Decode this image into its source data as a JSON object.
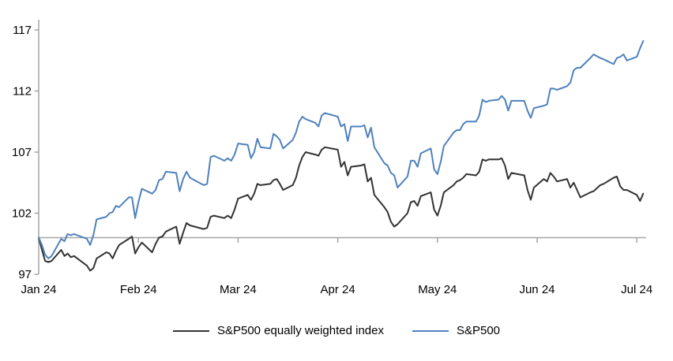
{
  "chart_data": {
    "type": "line",
    "title": "",
    "x_tick_labels": [
      "Jan 24",
      "Feb 24",
      "Mar 24",
      "Apr 24",
      "May 24",
      "Jun 24",
      "Jul 24"
    ],
    "y_ticks": [
      117,
      112,
      107,
      102,
      97
    ],
    "y_axis_range": [
      97,
      117.8
    ],
    "baseline_value": 100,
    "grid": false,
    "legend_position": "bottom",
    "dates": [
      "12-29",
      "01-02",
      "01-03",
      "01-04",
      "01-05",
      "01-08",
      "01-09",
      "01-10",
      "01-11",
      "01-12",
      "01-16",
      "01-17",
      "01-18",
      "01-19",
      "01-22",
      "01-23",
      "01-24",
      "01-25",
      "01-26",
      "01-29",
      "01-30",
      "01-31",
      "02-01",
      "02-02",
      "02-05",
      "02-06",
      "02-07",
      "02-08",
      "02-09",
      "02-12",
      "02-13",
      "02-14",
      "02-15",
      "02-16",
      "02-20",
      "02-21",
      "02-22",
      "02-23",
      "02-26",
      "02-27",
      "02-28",
      "02-29",
      "03-01",
      "03-04",
      "03-05",
      "03-06",
      "03-07",
      "03-08",
      "03-11",
      "03-12",
      "03-13",
      "03-14",
      "03-15",
      "03-18",
      "03-19",
      "03-20",
      "03-21",
      "03-22",
      "03-25",
      "03-26",
      "03-27",
      "03-28",
      "04-01",
      "04-02",
      "04-03",
      "04-04",
      "04-05",
      "04-08",
      "04-09",
      "04-10",
      "04-11",
      "04-12",
      "04-15",
      "04-16",
      "04-17",
      "04-18",
      "04-19",
      "04-22",
      "04-23",
      "04-24",
      "04-25",
      "04-26",
      "04-29",
      "04-30",
      "05-01",
      "05-02",
      "05-03",
      "05-06",
      "05-07",
      "05-08",
      "05-09",
      "05-10",
      "05-13",
      "05-14",
      "05-15",
      "05-16",
      "05-17",
      "05-20",
      "05-21",
      "05-22",
      "05-23",
      "05-24",
      "05-28",
      "05-29",
      "05-30",
      "05-31",
      "06-03",
      "06-04",
      "06-05",
      "06-06",
      "06-07",
      "06-10",
      "06-11",
      "06-12",
      "06-13",
      "06-14",
      "06-17",
      "06-18",
      "06-20",
      "06-21",
      "06-24",
      "06-25",
      "06-26",
      "06-27",
      "06-28",
      "07-01",
      "07-02",
      "07-03"
    ],
    "series": [
      {
        "id": "sp500-ew",
        "name": "S&P500 equally weighted index",
        "color": "#333333",
        "values": [
          100.0,
          99.0,
          98.1,
          98.0,
          98.1,
          99.0,
          98.5,
          98.7,
          98.4,
          98.5,
          97.7,
          97.3,
          97.5,
          98.3,
          98.8,
          98.7,
          98.3,
          98.9,
          99.4,
          99.9,
          100.1,
          98.7,
          99.2,
          99.6,
          98.8,
          99.5,
          100.0,
          100.1,
          100.5,
          100.9,
          99.5,
          100.4,
          101.2,
          101.0,
          100.7,
          100.8,
          101.7,
          101.8,
          101.6,
          101.8,
          101.6,
          102.3,
          103.2,
          103.5,
          103.1,
          103.6,
          104.4,
          104.3,
          104.4,
          104.7,
          104.8,
          104.4,
          103.9,
          104.3,
          104.9,
          105.9,
          106.6,
          107.0,
          106.8,
          106.7,
          107.2,
          107.4,
          107.2,
          105.8,
          106.2,
          105.1,
          105.8,
          105.9,
          106.0,
          104.6,
          104.9,
          103.5,
          102.5,
          102.1,
          101.3,
          100.9,
          101.1,
          102.0,
          102.9,
          103.0,
          102.6,
          103.4,
          103.7,
          102.3,
          101.8,
          102.6,
          103.7,
          104.3,
          104.6,
          104.7,
          104.9,
          105.2,
          105.1,
          105.4,
          106.4,
          106.3,
          106.4,
          106.4,
          106.5,
          105.9,
          104.8,
          105.3,
          105.1,
          103.9,
          103.1,
          104.1,
          104.8,
          104.6,
          105.3,
          105.0,
          104.6,
          104.8,
          104.1,
          104.5,
          103.9,
          103.3,
          103.7,
          103.8,
          104.3,
          104.4,
          104.9,
          105.0,
          104.2,
          103.9,
          103.9,
          103.5,
          103.0,
          103.6
        ]
      },
      {
        "id": "sp500",
        "name": "S&P500",
        "color": "#4f81bd",
        "values": [
          100.0,
          99.4,
          98.6,
          98.3,
          98.5,
          99.9,
          99.7,
          100.3,
          100.2,
          100.3,
          99.9,
          99.4,
          100.2,
          101.5,
          101.7,
          102.0,
          102.1,
          102.6,
          102.5,
          103.3,
          103.3,
          101.6,
          102.9,
          104.0,
          103.6,
          103.9,
          104.7,
          104.8,
          105.4,
          105.3,
          103.8,
          104.8,
          105.4,
          104.9,
          104.3,
          104.4,
          106.6,
          106.7,
          106.3,
          106.5,
          106.3,
          106.8,
          107.7,
          107.6,
          106.5,
          107.0,
          108.1,
          107.4,
          107.3,
          108.5,
          108.3,
          108.0,
          107.3,
          108.0,
          108.6,
          109.5,
          109.9,
          109.7,
          109.4,
          109.1,
          110.0,
          110.2,
          109.9,
          109.1,
          109.3,
          107.9,
          109.1,
          109.1,
          109.2,
          108.2,
          109.0,
          107.4,
          106.1,
          105.9,
          105.3,
          105.1,
          104.1,
          105.0,
          106.3,
          106.3,
          105.8,
          106.9,
          107.3,
          105.6,
          105.2,
          106.2,
          107.5,
          108.6,
          108.8,
          108.8,
          109.3,
          109.5,
          109.5,
          110.0,
          111.3,
          111.1,
          111.2,
          111.3,
          111.6,
          111.3,
          110.4,
          111.2,
          111.2,
          110.4,
          109.8,
          110.6,
          110.8,
          110.9,
          112.2,
          112.2,
          112.1,
          112.4,
          112.7,
          113.7,
          113.9,
          113.9,
          114.7,
          115.0,
          114.7,
          114.6,
          114.2,
          114.7,
          114.8,
          115.0,
          114.5,
          114.8,
          115.5,
          116.1
        ]
      }
    ]
  },
  "colors": {
    "axis": "#a6a6a6",
    "background": "#ffffff"
  }
}
